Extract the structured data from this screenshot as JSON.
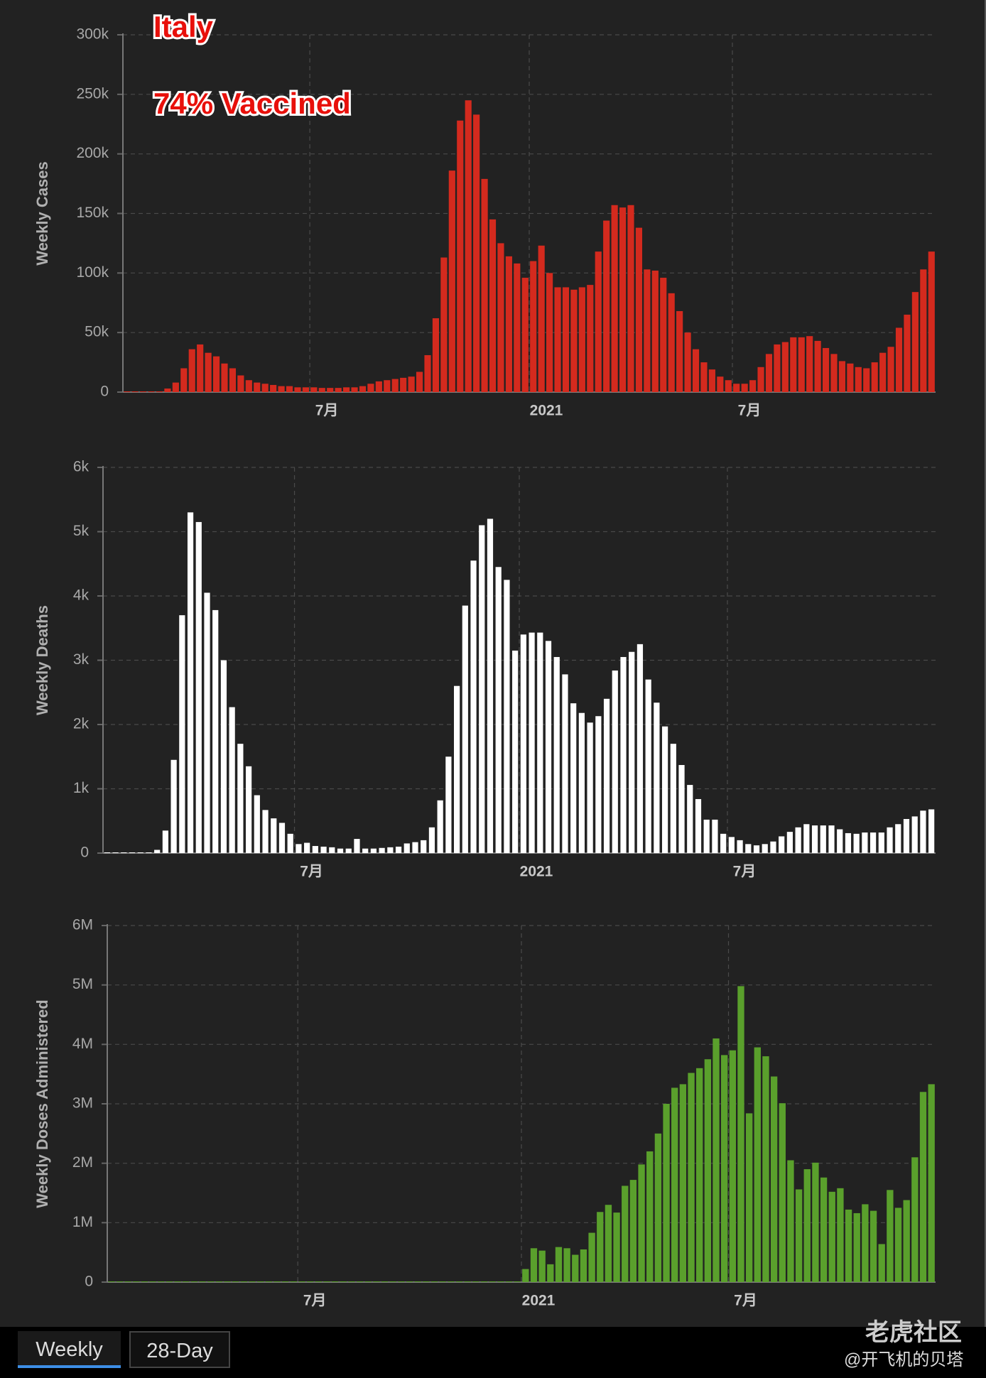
{
  "chart_data": [
    {
      "type": "bar",
      "title": "Italy",
      "subtitle": "74% Vaccined",
      "y_label": "Weekly Cases",
      "categories": [
        null,
        null,
        null,
        null,
        null,
        null,
        null,
        null,
        null,
        null,
        null,
        null,
        null,
        null,
        null,
        null,
        null,
        null,
        null,
        null,
        null,
        null,
        null,
        "7月",
        null,
        null,
        null,
        null,
        null,
        null,
        null,
        null,
        null,
        null,
        null,
        null,
        null,
        null,
        null,
        null,
        null,
        null,
        null,
        null,
        null,
        null,
        null,
        null,
        null,
        null,
        "2021",
        null,
        null,
        null,
        null,
        null,
        null,
        null,
        null,
        null,
        null,
        null,
        null,
        null,
        null,
        null,
        null,
        null,
        null,
        null,
        null,
        null,
        null,
        null,
        null,
        "7月",
        null,
        null,
        null,
        null,
        null,
        null,
        null,
        null,
        null,
        null,
        null,
        null,
        null,
        null,
        null,
        null,
        null,
        null,
        null,
        null,
        null,
        null,
        null,
        null
      ],
      "values": [
        0,
        0,
        0,
        0,
        0,
        3000,
        8000,
        20000,
        36000,
        40000,
        33000,
        30000,
        24000,
        20000,
        14000,
        10000,
        8000,
        7000,
        6000,
        5000,
        5000,
        4000,
        4000,
        4000,
        3500,
        3500,
        3500,
        4000,
        4000,
        5000,
        7000,
        9000,
        10000,
        11000,
        12000,
        13000,
        17000,
        31000,
        62000,
        113000,
        186000,
        228000,
        245000,
        233000,
        179000,
        145000,
        125000,
        114000,
        108000,
        96000,
        110000,
        123000,
        100000,
        88000,
        88000,
        86000,
        88000,
        90000,
        118000,
        144000,
        157000,
        155000,
        157000,
        138000,
        103000,
        102000,
        96000,
        83000,
        68000,
        50000,
        36000,
        25000,
        19000,
        13000,
        10000,
        7000,
        7000,
        10000,
        21000,
        32000,
        40000,
        42000,
        46000,
        46000,
        47000,
        43000,
        37000,
        32000,
        26000,
        24000,
        21000,
        20000,
        25000,
        33000,
        38000,
        54000,
        65000,
        84000,
        103000,
        118000
      ],
      "color": "#d42a1e",
      "ylim": [
        0,
        300000
      ],
      "yticks": [
        0,
        {
          "value": 50000,
          "label": "50k"
        },
        {
          "value": 100000,
          "label": "100k"
        },
        {
          "value": 150000,
          "label": "150k"
        },
        {
          "value": 200000,
          "label": "200k"
        },
        {
          "value": 250000,
          "label": "250k"
        },
        {
          "value": 300000,
          "label": "300k"
        }
      ],
      "grid": true
    },
    {
      "type": "bar",
      "y_label": "Weekly Deaths",
      "categories": [
        null,
        null,
        null,
        null,
        null,
        null,
        null,
        null,
        null,
        null,
        null,
        null,
        null,
        null,
        null,
        null,
        null,
        null,
        null,
        null,
        null,
        null,
        null,
        "7月",
        null,
        null,
        null,
        null,
        null,
        null,
        null,
        null,
        null,
        null,
        null,
        null,
        null,
        null,
        null,
        null,
        null,
        null,
        null,
        null,
        null,
        null,
        null,
        null,
        null,
        null,
        "2021",
        null,
        null,
        null,
        null,
        null,
        null,
        null,
        null,
        null,
        null,
        null,
        null,
        null,
        null,
        null,
        null,
        null,
        null,
        null,
        null,
        null,
        null,
        null,
        null,
        "7月",
        null,
        null,
        null,
        null,
        null,
        null,
        null,
        null,
        null,
        null,
        null,
        null,
        null,
        null,
        null,
        null,
        null,
        null,
        null,
        null,
        null,
        null,
        null,
        null
      ],
      "values": [
        0,
        0,
        0,
        0,
        0,
        0,
        50,
        350,
        1450,
        3700,
        5300,
        5150,
        4050,
        3780,
        3000,
        2270,
        1700,
        1350,
        900,
        670,
        540,
        470,
        300,
        140,
        160,
        110,
        100,
        90,
        70,
        70,
        220,
        70,
        70,
        80,
        90,
        100,
        150,
        170,
        200,
        400,
        820,
        1500,
        2600,
        3850,
        4550,
        5100,
        5200,
        4450,
        4250,
        3150,
        3400,
        3430,
        3430,
        3300,
        3050,
        2780,
        2330,
        2180,
        2030,
        2130,
        2400,
        2840,
        3050,
        3130,
        3250,
        2700,
        2340,
        1970,
        1700,
        1370,
        1060,
        840,
        520,
        520,
        300,
        250,
        200,
        140,
        120,
        140,
        180,
        260,
        330,
        400,
        450,
        430,
        430,
        430,
        370,
        310,
        300,
        320,
        320,
        320,
        400,
        450,
        530,
        570,
        660,
        680
      ],
      "color": "#ffffff",
      "ylim": [
        0,
        6000
      ],
      "yticks": [
        0,
        {
          "value": 1000,
          "label": "1k"
        },
        {
          "value": 2000,
          "label": "2k"
        },
        {
          "value": 3000,
          "label": "3k"
        },
        {
          "value": 4000,
          "label": "4k"
        },
        {
          "value": 5000,
          "label": "5k"
        },
        {
          "value": 6000,
          "label": "6k"
        }
      ],
      "grid": true
    },
    {
      "type": "bar",
      "y_label": "Weekly Doses Administered",
      "categories": [
        null,
        null,
        null,
        null,
        null,
        null,
        null,
        null,
        null,
        null,
        null,
        null,
        null,
        null,
        null,
        null,
        null,
        null,
        null,
        null,
        null,
        null,
        null,
        "7月",
        null,
        null,
        null,
        null,
        null,
        null,
        null,
        null,
        null,
        null,
        null,
        null,
        null,
        null,
        null,
        null,
        null,
        null,
        null,
        null,
        null,
        null,
        null,
        null,
        null,
        null,
        "2021",
        null,
        null,
        null,
        null,
        null,
        null,
        null,
        null,
        null,
        null,
        null,
        null,
        null,
        null,
        null,
        null,
        null,
        null,
        null,
        null,
        null,
        null,
        null,
        null,
        "7月",
        null,
        null,
        null,
        null,
        null,
        null,
        null,
        null,
        null,
        null,
        null,
        null,
        null,
        null,
        null,
        null,
        null,
        null,
        null,
        null,
        null,
        null,
        null,
        null
      ],
      "values": [
        0,
        0,
        0,
        0,
        0,
        0,
        0,
        0,
        0,
        0,
        0,
        0,
        0,
        0,
        0,
        0,
        0,
        0,
        0,
        0,
        0,
        0,
        0,
        0,
        0,
        0,
        0,
        0,
        0,
        0,
        0,
        0,
        0,
        0,
        0,
        0,
        0,
        0,
        0,
        0,
        0,
        0,
        0,
        0,
        0,
        0,
        0,
        0,
        0,
        0,
        220000,
        570000,
        530000,
        300000,
        590000,
        570000,
        460000,
        550000,
        830000,
        1180000,
        1300000,
        1170000,
        1620000,
        1720000,
        1980000,
        2200000,
        2500000,
        3000000,
        3270000,
        3330000,
        3520000,
        3600000,
        3750000,
        4100000,
        3820000,
        3900000,
        4980000,
        2840000,
        3950000,
        3800000,
        3460000,
        3010000,
        2050000,
        1560000,
        1900000,
        2010000,
        1760000,
        1520000,
        1580000,
        1220000,
        1160000,
        1310000,
        1200000,
        640000,
        1550000,
        1250000,
        1380000,
        2100000,
        3200000,
        3330000
      ],
      "color": "#5aa02c",
      "ylim": [
        0,
        6000000
      ],
      "yticks": [
        0,
        {
          "value": 1000000,
          "label": "1M"
        },
        {
          "value": 2000000,
          "label": "2M"
        },
        {
          "value": 3000000,
          "label": "3M"
        },
        {
          "value": 4000000,
          "label": "4M"
        },
        {
          "value": 5000000,
          "label": "5M"
        },
        {
          "value": 6000000,
          "label": "6M"
        }
      ],
      "grid": true
    }
  ],
  "tabs": [
    "Weekly",
    "28-Day"
  ],
  "watermark": [
    "老虎社区",
    "@开飞机的贝塔"
  ]
}
